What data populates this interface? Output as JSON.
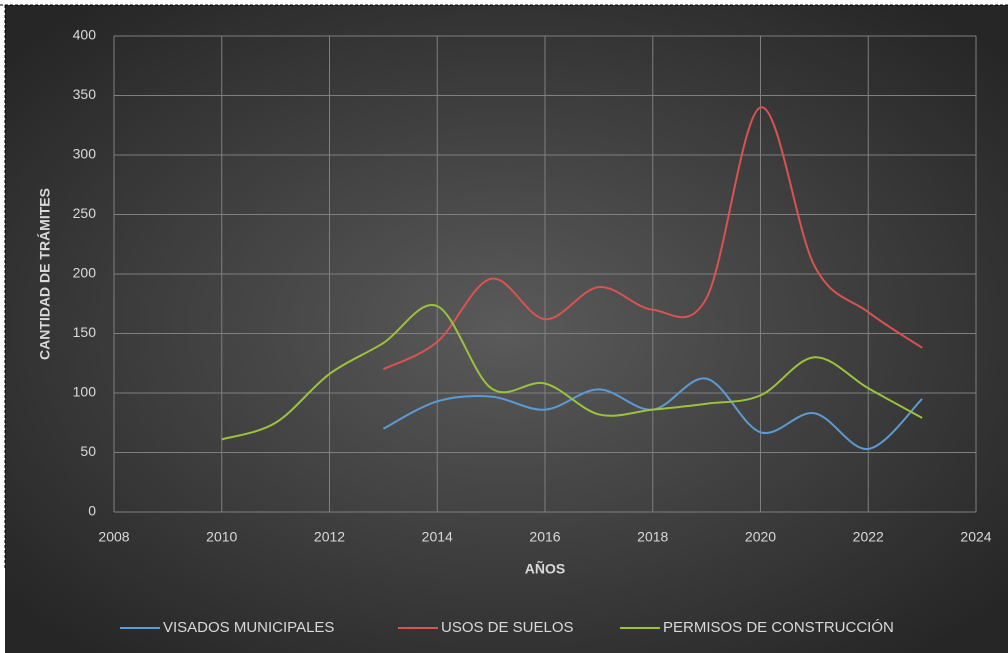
{
  "chart_data": {
    "type": "line",
    "x_label": "AÑOS",
    "y_label": "CANTIDAD DE TRÁMITES",
    "xlim": [
      2008,
      2024
    ],
    "xticks": [
      2008,
      2010,
      2012,
      2014,
      2016,
      2018,
      2020,
      2022,
      2024
    ],
    "ylim": [
      0,
      400
    ],
    "yticks": [
      0,
      50,
      100,
      150,
      200,
      250,
      300,
      350,
      400
    ],
    "grid": true,
    "smooth": true,
    "legend": "bottom",
    "series": [
      {
        "name": "VISADOS MUNICIPALES",
        "color": "#5b9bd5",
        "x": [
          2013,
          2014,
          2015,
          2016,
          2017,
          2018,
          2019,
          2020,
          2021,
          2022,
          2023
        ],
        "values": [
          70,
          93,
          97,
          86,
          103,
          86,
          112,
          67,
          83,
          53,
          95
        ]
      },
      {
        "name": "USOS DE SUELOS",
        "color": "#d9534f",
        "x": [
          2013,
          2014,
          2015,
          2016,
          2017,
          2018,
          2019,
          2020,
          2021,
          2022,
          2023
        ],
        "values": [
          120,
          143,
          196,
          162,
          189,
          170,
          180,
          340,
          207,
          168,
          138
        ]
      },
      {
        "name": "PERMISOS DE CONSTRUCCIÓN",
        "color": "#9bc23c",
        "x": [
          2010,
          2011,
          2012,
          2013,
          2014,
          2015,
          2016,
          2017,
          2018,
          2019,
          2020,
          2021,
          2022,
          2023
        ],
        "values": [
          61,
          75,
          116,
          142,
          173,
          104,
          108,
          82,
          86,
          91,
          98,
          130,
          104,
          79
        ]
      }
    ]
  }
}
